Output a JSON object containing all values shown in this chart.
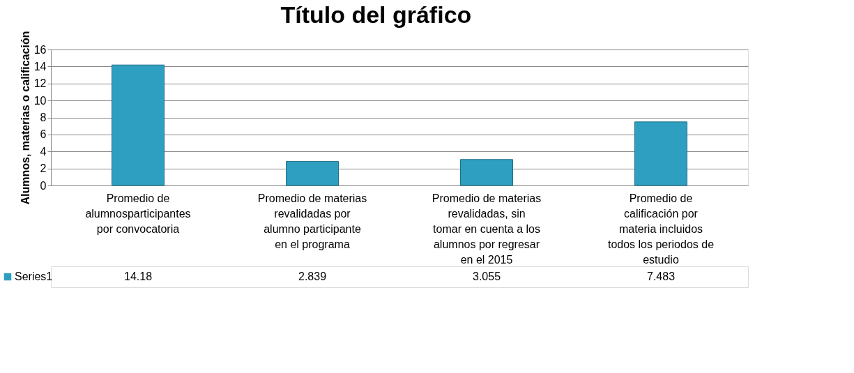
{
  "chart_data": {
    "type": "bar",
    "title": "Título del gráfico",
    "ylabel": "Alumnos, materias o calificación",
    "categories": [
      "Promedio de alumnosparticipantes por convocatoria",
      "Promedio de materias revalidadas por alumno participante en el programa",
      "Promedio de materias revalidadas, sin tomar en cuenta a los alumnos por regresar en el 2015",
      "Promedio de calificación por materia incluidos todos los periodos de estudio"
    ],
    "series": [
      {
        "name": "Series1",
        "color": "#2e9fc0",
        "values": [
          14.18,
          2.839,
          3.055,
          7.483
        ]
      }
    ],
    "ylim": [
      0,
      16
    ],
    "yticks": [
      0,
      2,
      4,
      6,
      8,
      10,
      12,
      14,
      16
    ],
    "grid": "y",
    "data_labels": true,
    "legend": "bottom left"
  }
}
